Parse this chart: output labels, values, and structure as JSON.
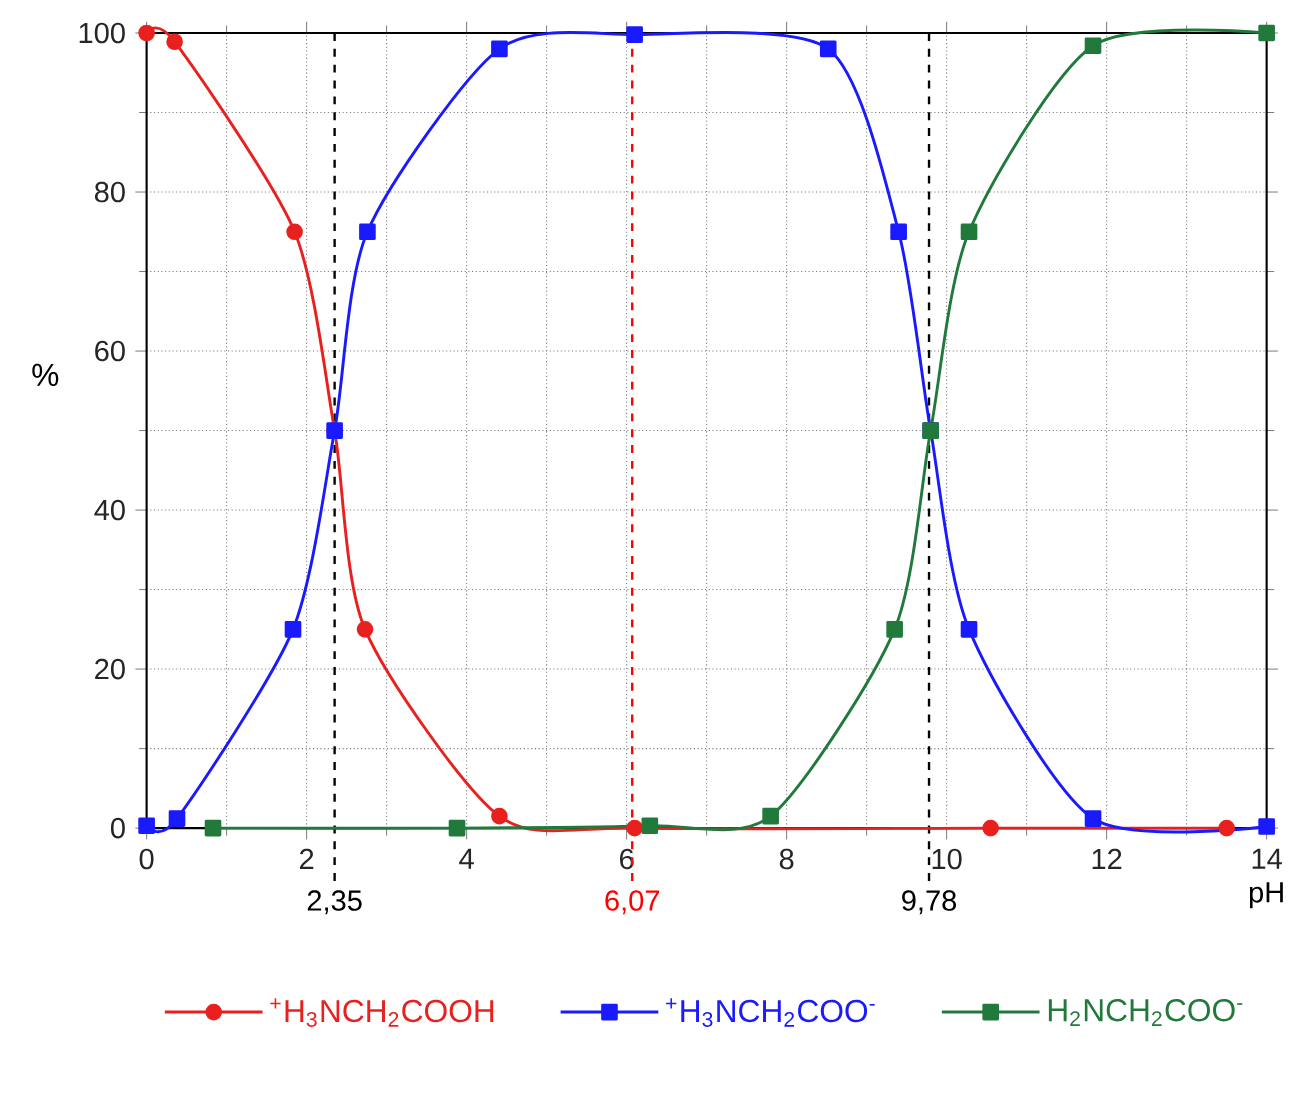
{
  "chart_data": {
    "type": "line",
    "xlabel": "pH",
    "ylabel": "%",
    "xlim": [
      0,
      14
    ],
    "ylim": [
      0,
      100
    ],
    "xticks": [
      0,
      2,
      4,
      6,
      8,
      10,
      12,
      14
    ],
    "yticks": [
      0,
      20,
      40,
      60,
      80,
      100
    ],
    "grid": true,
    "legend": "bottom",
    "line_style": "solid",
    "series": [
      {
        "name": "$^{+}$H$_{3}$NCH$_{2}$COOH",
        "color": "#e8201e",
        "marker": "circle",
        "x": [
          0,
          0.35,
          1.85,
          2.35,
          2.73,
          4.41,
          6.1,
          10.55,
          13.5
        ],
        "values": [
          100,
          98.9,
          75,
          50,
          25,
          1.5,
          0,
          0,
          0
        ]
      },
      {
        "name": "$^{+}$H$_{3}$NCH$_{2}$COO$^{-}$",
        "color": "#1a1aff",
        "marker": "square",
        "x": [
          0,
          0.38,
          1.83,
          2.35,
          2.76,
          4.41,
          6.1,
          8.52,
          9.4,
          9.8,
          10.28,
          11.83,
          14
        ],
        "values": [
          0.3,
          1.2,
          25,
          50,
          75,
          98,
          99.8,
          98,
          75,
          50,
          25,
          1.2,
          0.2
        ]
      },
      {
        "name": "H$_{2}$NCH$_{2}$COO$^{-}$",
        "color": "#217a3c",
        "marker": "square",
        "x": [
          0.83,
          3.88,
          6.29,
          7.8,
          9.35,
          9.8,
          10.28,
          11.83,
          14
        ],
        "values": [
          0,
          0,
          0.3,
          1.5,
          25,
          50,
          75,
          98.4,
          100
        ]
      }
    ],
    "ref_lines": [
      {
        "axis": "x",
        "value": 2.35,
        "label": "2,35",
        "color": "#000000",
        "line_style": "dashed"
      },
      {
        "axis": "x",
        "value": 6.07,
        "label": "6,07",
        "color": "#ff0000",
        "line_style": "dashed"
      },
      {
        "axis": "x",
        "value": 9.78,
        "label": "9,78",
        "color": "#000000",
        "line_style": "dashed"
      }
    ]
  }
}
